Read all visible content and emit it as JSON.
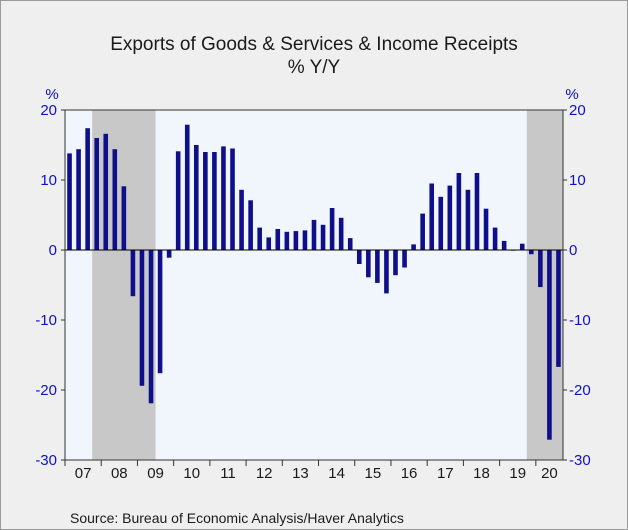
{
  "chart_data": {
    "type": "bar",
    "title": "Exports of Goods & Services & Income Receipts",
    "subtitle": "% Y/Y",
    "y_unit_left": "%",
    "y_unit_right": "%",
    "ylim": [
      -30,
      20
    ],
    "yticks": [
      20,
      10,
      0,
      -10,
      -20,
      -30
    ],
    "xlim": [
      2007.0,
      2020.75
    ],
    "year_labels": [
      "07",
      "08",
      "09",
      "10",
      "11",
      "12",
      "13",
      "14",
      "15",
      "16",
      "17",
      "18",
      "19",
      "20"
    ],
    "source": "Source:  Bureau of Economic Analysis/Haver Analytics",
    "bar_color": "#0f0f8a",
    "plot_background": "#f0f6fc",
    "recession_color": "#c8c8c8",
    "recessions": [
      [
        2007.75,
        2009.5
      ],
      [
        2019.75,
        2020.75
      ]
    ],
    "grid": false,
    "x": [
      "2007-Q1",
      "2007-Q2",
      "2007-Q3",
      "2007-Q4",
      "2008-Q1",
      "2008-Q2",
      "2008-Q3",
      "2008-Q4",
      "2009-Q1",
      "2009-Q2",
      "2009-Q3",
      "2009-Q4",
      "2010-Q1",
      "2010-Q2",
      "2010-Q3",
      "2010-Q4",
      "2011-Q1",
      "2011-Q2",
      "2011-Q3",
      "2011-Q4",
      "2012-Q1",
      "2012-Q2",
      "2012-Q3",
      "2012-Q4",
      "2013-Q1",
      "2013-Q2",
      "2013-Q3",
      "2013-Q4",
      "2014-Q1",
      "2014-Q2",
      "2014-Q3",
      "2014-Q4",
      "2015-Q1",
      "2015-Q2",
      "2015-Q3",
      "2015-Q4",
      "2016-Q1",
      "2016-Q2",
      "2016-Q3",
      "2016-Q4",
      "2017-Q1",
      "2017-Q2",
      "2017-Q3",
      "2017-Q4",
      "2018-Q1",
      "2018-Q2",
      "2018-Q3",
      "2018-Q4",
      "2019-Q1",
      "2019-Q2",
      "2019-Q3",
      "2019-Q4",
      "2020-Q1",
      "2020-Q2",
      "2020-Q3"
    ],
    "values": [
      13.8,
      14.4,
      17.4,
      16.0,
      16.6,
      14.4,
      9.1,
      -6.6,
      -19.4,
      -21.9,
      -17.6,
      -1.1,
      14.1,
      17.9,
      15.0,
      14.0,
      14.0,
      14.8,
      14.5,
      8.6,
      7.1,
      3.2,
      1.8,
      3.0,
      2.6,
      2.7,
      2.8,
      4.3,
      3.6,
      6.0,
      4.6,
      1.7,
      -2.0,
      -3.9,
      -4.7,
      -6.2,
      -3.6,
      -2.5,
      0.8,
      5.2,
      9.5,
      7.6,
      9.2,
      11.0,
      8.6,
      11.0,
      5.9,
      3.2,
      1.3,
      -0.1,
      0.9,
      -0.6,
      -5.3,
      -27.1,
      -16.7
    ]
  }
}
